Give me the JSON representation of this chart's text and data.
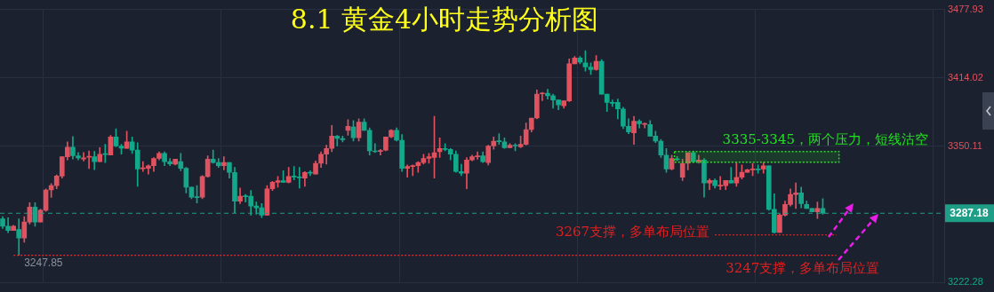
{
  "chart_data": {
    "type": "candlestick",
    "title": "8.1 黄金4小时走势分析图",
    "categories": [
      null,
      null,
      null,
      null,
      null,
      null,
      null,
      null,
      null,
      null,
      null,
      null,
      null,
      null,
      null,
      null,
      null,
      null,
      null,
      null,
      null,
      null,
      null,
      null,
      null,
      null,
      null,
      null,
      null,
      null,
      null,
      null,
      null,
      null,
      null,
      null,
      null,
      null,
      null,
      null,
      null,
      null,
      null,
      null,
      null,
      null,
      null,
      null,
      null,
      null,
      null,
      null,
      null,
      null,
      null,
      null,
      null,
      null,
      null,
      null,
      null,
      null,
      null,
      null,
      null,
      null,
      null,
      null,
      null,
      null,
      null,
      null,
      null,
      null,
      null,
      null,
      null,
      null,
      null,
      null,
      null,
      null,
      null,
      null,
      null,
      null,
      null,
      null,
      null,
      null,
      null,
      null,
      null,
      null,
      null,
      null,
      null,
      null,
      null,
      null,
      null,
      null,
      null,
      null,
      null,
      null,
      null,
      null,
      null,
      null,
      null,
      null,
      null,
      null,
      null,
      null,
      null,
      null,
      null,
      null,
      null,
      null,
      null,
      null,
      null,
      null,
      null,
      null,
      null,
      null,
      null,
      null,
      null,
      null,
      null,
      null,
      null,
      null,
      null,
      null,
      null,
      null,
      null,
      null,
      null,
      null,
      null,
      null,
      null,
      null,
      null,
      null,
      null,
      null,
      null,
      null,
      null,
      null,
      null,
      null,
      null,
      null,
      null,
      null,
      null,
      null,
      null,
      null,
      null,
      null,
      null,
      null,
      null,
      null,
      null
    ],
    "ohlc": [
      [
        3282,
        3284,
        3273,
        3275
      ],
      [
        3275,
        3283,
        3269,
        3271
      ],
      [
        3271,
        3276,
        3271,
        3275
      ],
      [
        3272,
        3282,
        3247.85,
        3264
      ],
      [
        3264,
        3284,
        3260,
        3279
      ],
      [
        3279,
        3297,
        3277,
        3293
      ],
      [
        3293,
        3297,
        3275,
        3279
      ],
      [
        3279,
        3291,
        3279,
        3290
      ],
      [
        3290,
        3310,
        3289,
        3309
      ],
      [
        3309,
        3315,
        3302,
        3313
      ],
      [
        3313,
        3323,
        3310,
        3322
      ],
      [
        3322,
        3340,
        3320,
        3340
      ],
      [
        3340,
        3354,
        3337,
        3349
      ],
      [
        3349,
        3359,
        3338,
        3341
      ],
      [
        3341,
        3344,
        3337,
        3339
      ],
      [
        3338,
        3344,
        3336,
        3339
      ],
      [
        3339.5,
        3345.5,
        3329,
        3340.5
      ],
      [
        3340,
        3345,
        3328,
        3335.5
      ],
      [
        3335.5,
        3348.5,
        3335.5,
        3342.4
      ],
      [
        3342.6,
        3351.6,
        3334.7,
        3342.1
      ],
      [
        3341.6,
        3360.1,
        3341.6,
        3358.6
      ],
      [
        3358.6,
        3366.3,
        3349.3,
        3350.1
      ],
      [
        3350.1,
        3351.6,
        3342.4,
        3348
      ],
      [
        3347.8,
        3363.9,
        3347.8,
        3353.9
      ],
      [
        3353.9,
        3358.6,
        3343.2,
        3346.2
      ],
      [
        3346.2,
        3353.2,
        3312.3,
        3328.5
      ],
      [
        3328.8,
        3335.5,
        3326.2,
        3329.3
      ],
      [
        3329.3,
        3332.4,
        3323.9,
        3331.6
      ],
      [
        3331.6,
        3339.3,
        3326.2,
        3338.5
      ],
      [
        3338.5,
        3344.7,
        3337,
        3343.2
      ],
      [
        3343.2,
        3344.7,
        3331.6,
        3335.5
      ],
      [
        3335.5,
        3338.5,
        3331.6,
        3333.4
      ],
      [
        3333.1,
        3337.8,
        3332.4,
        3337.8
      ],
      [
        3335.5,
        3343.2,
        3327,
        3329.3
      ],
      [
        3329.3,
        3330.1,
        3306.2,
        3311.6
      ],
      [
        3311.6,
        3311.6,
        3300.8,
        3302.3
      ],
      [
        3302.3,
        3313.1,
        3296.9,
        3301.8
      ],
      [
        3302.3,
        3322.4,
        3300.8,
        3321.6
      ],
      [
        3321.6,
        3340.8,
        3320.8,
        3337.8
      ],
      [
        3337.8,
        3346.2,
        3334,
        3334.7
      ],
      [
        3334.7,
        3338.5,
        3330.1,
        3331.6
      ],
      [
        3331.6,
        3340.1,
        3327.7,
        3334.7
      ],
      [
        3334.7,
        3334.7,
        3320,
        3325.4
      ],
      [
        3325.4,
        3330.1,
        3287.7,
        3298.5
      ],
      [
        3298.5,
        3310.8,
        3296.2,
        3303.1
      ],
      [
        3303.1,
        3304.7,
        3297.7,
        3302.6
      ],
      [
        3303.1,
        3308.5,
        3285.4,
        3293.9
      ],
      [
        3293.9,
        3297.7,
        3286.2,
        3292.3
      ],
      [
        3292.3,
        3296.2,
        3283.1,
        3285.4
      ],
      [
        3285.4,
        3313.1,
        3285.4,
        3310
      ],
      [
        3310,
        3317,
        3308.5,
        3316.2
      ],
      [
        3316.2,
        3321.6,
        3311.6,
        3317.7
      ],
      [
        3317.7,
        3327,
        3316.2,
        3316.2
      ],
      [
        3316.2,
        3330.1,
        3315.4,
        3321.6
      ],
      [
        3321.6,
        3330.9,
        3318.5,
        3321.1
      ],
      [
        3320.8,
        3330.1,
        3310.8,
        3320.3
      ],
      [
        3320,
        3326.2,
        3312.4,
        3325.4
      ],
      [
        3325.4,
        3327,
        3322.4,
        3324.7
      ],
      [
        3323.9,
        3336.2,
        3323.9,
        3333.9
      ],
      [
        3333.9,
        3344.7,
        3330.1,
        3342.4
      ],
      [
        3342.4,
        3350.9,
        3333.1,
        3347.8
      ],
      [
        3347.8,
        3369.3,
        3344.7,
        3359.3
      ],
      [
        3359.3,
        3360.1,
        3350.1,
        3357.3
      ],
      [
        3357,
        3359.3,
        3353.9,
        3356
      ],
      [
        3364.7,
        3374.7,
        3360.1,
        3368.6
      ],
      [
        3367.8,
        3374,
        3354.7,
        3357.8
      ],
      [
        3357.8,
        3375.5,
        3354.7,
        3372.4
      ],
      [
        3372.4,
        3375.5,
        3364.7,
        3364.7
      ],
      [
        3364.7,
        3367,
        3341.6,
        3345.5
      ],
      [
        3345.5,
        3352.4,
        3343.9,
        3344.7
      ],
      [
        3345,
        3347,
        3341.6,
        3345.5
      ],
      [
        3346.2,
        3358.6,
        3345.5,
        3358.6
      ],
      [
        3358.6,
        3365.5,
        3357.8,
        3364.7
      ],
      [
        3364.7,
        3367,
        3354.7,
        3355.5
      ],
      [
        3355.5,
        3360.9,
        3326.2,
        3329.3
      ],
      [
        3329.3,
        3332.4,
        3320.8,
        3330.9
      ],
      [
        3330.9,
        3332.4,
        3322.4,
        3331.6
      ],
      [
        3331.6,
        3335.5,
        3325.4,
        3334.7
      ],
      [
        3334.7,
        3342.4,
        3333.1,
        3338.5
      ],
      [
        3338.5,
        3343.2,
        3333.9,
        3340.1
      ],
      [
        3339.3,
        3377.8,
        3320,
        3343.9
      ],
      [
        3344.7,
        3357.8,
        3339.3,
        3347.8
      ],
      [
        3347.8,
        3352.4,
        3345.5,
        3346.8
      ],
      [
        3347,
        3347.8,
        3337,
        3342.4
      ],
      [
        3342.4,
        3345.5,
        3325.4,
        3326.2
      ],
      [
        3326.2,
        3333.1,
        3322.4,
        3324.7
      ],
      [
        3324.7,
        3339.3,
        3310,
        3337
      ],
      [
        3337,
        3341.6,
        3336.2,
        3340.1
      ],
      [
        3340.1,
        3344.7,
        3337.8,
        3340.9
      ],
      [
        3340.9,
        3344.7,
        3334.7,
        3335.5
      ],
      [
        3334.7,
        3350.9,
        3332.4,
        3350.1
      ],
      [
        3350.1,
        3358.6,
        3347,
        3354.7
      ],
      [
        3355,
        3361.7,
        3351.6,
        3354.2
      ],
      [
        3353.9,
        3357.8,
        3347.8,
        3348.6
      ],
      [
        3348.6,
        3352.4,
        3348.6,
        3350.9
      ],
      [
        3350.9,
        3352.4,
        3345.5,
        3350.1
      ],
      [
        3349.3,
        3359.3,
        3348.6,
        3351.6
      ],
      [
        3351.6,
        3371.7,
        3350.9,
        3365.5
      ],
      [
        3365.5,
        3376.3,
        3363.2,
        3376.3
      ],
      [
        3376.3,
        3402.5,
        3375.5,
        3398.6
      ],
      [
        3398.9,
        3400.2,
        3392.5,
        3399.4
      ],
      [
        3399.4,
        3403.2,
        3394,
        3397.1
      ],
      [
        3397.1,
        3398.6,
        3385.5,
        3393.2
      ],
      [
        3393.2,
        3393.2,
        3384,
        3388.6
      ],
      [
        3387.8,
        3392.5,
        3385.5,
        3392.5
      ],
      [
        3392.4,
        3431.7,
        3391.7,
        3427.1
      ],
      [
        3427.1,
        3434,
        3427.1,
        3432.5
      ],
      [
        3432.5,
        3434,
        3427.1,
        3428.6
      ],
      [
        3427.9,
        3439.4,
        3420.2,
        3424
      ],
      [
        3424,
        3427.9,
        3417.1,
        3421.7
      ],
      [
        3421.7,
        3434.8,
        3420.9,
        3429.4
      ],
      [
        3429.4,
        3431,
        3398.6,
        3398.6
      ],
      [
        3398.6,
        3398.6,
        3382.4,
        3390.9
      ],
      [
        3390.9,
        3393.2,
        3387.1,
        3390.1
      ],
      [
        3390.9,
        3394,
        3375.5,
        3384.8
      ],
      [
        3384.8,
        3386.3,
        3366.3,
        3368.6
      ],
      [
        3368.6,
        3375.5,
        3361.6,
        3363.2
      ],
      [
        3362.4,
        3377.8,
        3351.6,
        3373.2
      ],
      [
        3373.2,
        3374.7,
        3367,
        3370.9
      ],
      [
        3370.4,
        3371.7,
        3367,
        3370.9
      ],
      [
        3370.1,
        3374,
        3359.3,
        3359.3
      ],
      [
        3359.3,
        3364,
        3353.2,
        3354.7
      ],
      [
        3354.7,
        3356.3,
        3339.3,
        3341.6
      ],
      [
        3341.6,
        3347.8,
        3325.4,
        3328.5
      ],
      [
        3328.5,
        3341.6,
        3327.8,
        3338.5
      ],
      [
        3337.8,
        3340.2,
        3336.4,
        3337.3
      ],
      [
        3320.8,
        3337.8,
        3317.8,
        3333.9
      ],
      [
        3333.9,
        3343.9,
        3327.8,
        3343.9
      ],
      [
        3343.9,
        3345.5,
        3334.7,
        3335.5
      ],
      [
        3335.5,
        3341.6,
        3333.9,
        3337
      ],
      [
        3337,
        3338.5,
        3302.3,
        3315.4
      ],
      [
        3315.4,
        3319.3,
        3309.3,
        3317.8
      ],
      [
        3317.8,
        3319.3,
        3310.8,
        3313.1
      ],
      [
        3312.6,
        3321.6,
        3309.3,
        3313.1
      ],
      [
        3313.1,
        3317.8,
        3309.3,
        3317.8
      ],
      [
        3317.8,
        3330.1,
        3315.4,
        3315.4
      ],
      [
        3315.4,
        3334.7,
        3312.4,
        3320.8
      ],
      [
        3320.8,
        3332.4,
        3319.3,
        3325.5
      ],
      [
        3325.5,
        3328.5,
        3325.5,
        3327.8
      ],
      [
        3327.8,
        3333.9,
        3322.4,
        3328.5
      ],
      [
        3328.5,
        3332.4,
        3324.7,
        3327.8
      ],
      [
        3328.5,
        3334.7,
        3324.7,
        3331.6
      ],
      [
        3331.6,
        3331.6,
        3290,
        3290.8
      ],
      [
        3290.8,
        3305.4,
        3268.5,
        3269.2
      ],
      [
        3269.2,
        3286.2,
        3269.2,
        3285.4
      ],
      [
        3285.4,
        3298.5,
        3284.6,
        3295.4
      ],
      [
        3295.4,
        3310,
        3293.9,
        3304.7
      ],
      [
        3304.7,
        3315.5,
        3291.6,
        3306.2
      ],
      [
        3306.2,
        3311.6,
        3292.3,
        3296.2
      ],
      [
        3295.4,
        3298.5,
        3291.6,
        3291.6
      ],
      [
        3291.6,
        3291.6,
        3288.5,
        3288.5
      ],
      [
        3288.5,
        3297.7,
        3282.3,
        3291.6
      ],
      [
        3291.6,
        3300.8,
        3286.2,
        3287.18
      ],
      null,
      null,
      null,
      null,
      null,
      null,
      null,
      null,
      null,
      null,
      null,
      null,
      null,
      null,
      null,
      null,
      null,
      null,
      null,
      null,
      null,
      null
    ],
    "ylim": [
      3222.28,
      3477.93
    ],
    "yticks": [
      3222.28,
      3350.11,
      3414.02,
      3477.93
    ],
    "tick_labels": "y",
    "grid": true,
    "legend": false,
    "ref_lines": [
      {
        "axis": "y",
        "value": 3287.18,
        "label": "3287.18",
        "color": "#1e9e86",
        "line_style": "dashed"
      },
      {
        "axis": "y",
        "value": 3247.85,
        "label": "3247.85",
        "color": "#ff2020",
        "line_style": "dotted"
      },
      {
        "axis": "y",
        "value": 3267,
        "label": "3267支撑，多单布局位置",
        "color": "#e02020",
        "line_style": "dotted"
      }
    ],
    "bands": [
      {
        "axis": "y",
        "from": 3335,
        "to": 3345,
        "label": "3335-3345，两个压力，短线沽空",
        "color": "#22e022"
      }
    ],
    "annotations": [
      {
        "text": "3247支撑，多单布局位置",
        "y": 3247
      }
    ]
  }
}
